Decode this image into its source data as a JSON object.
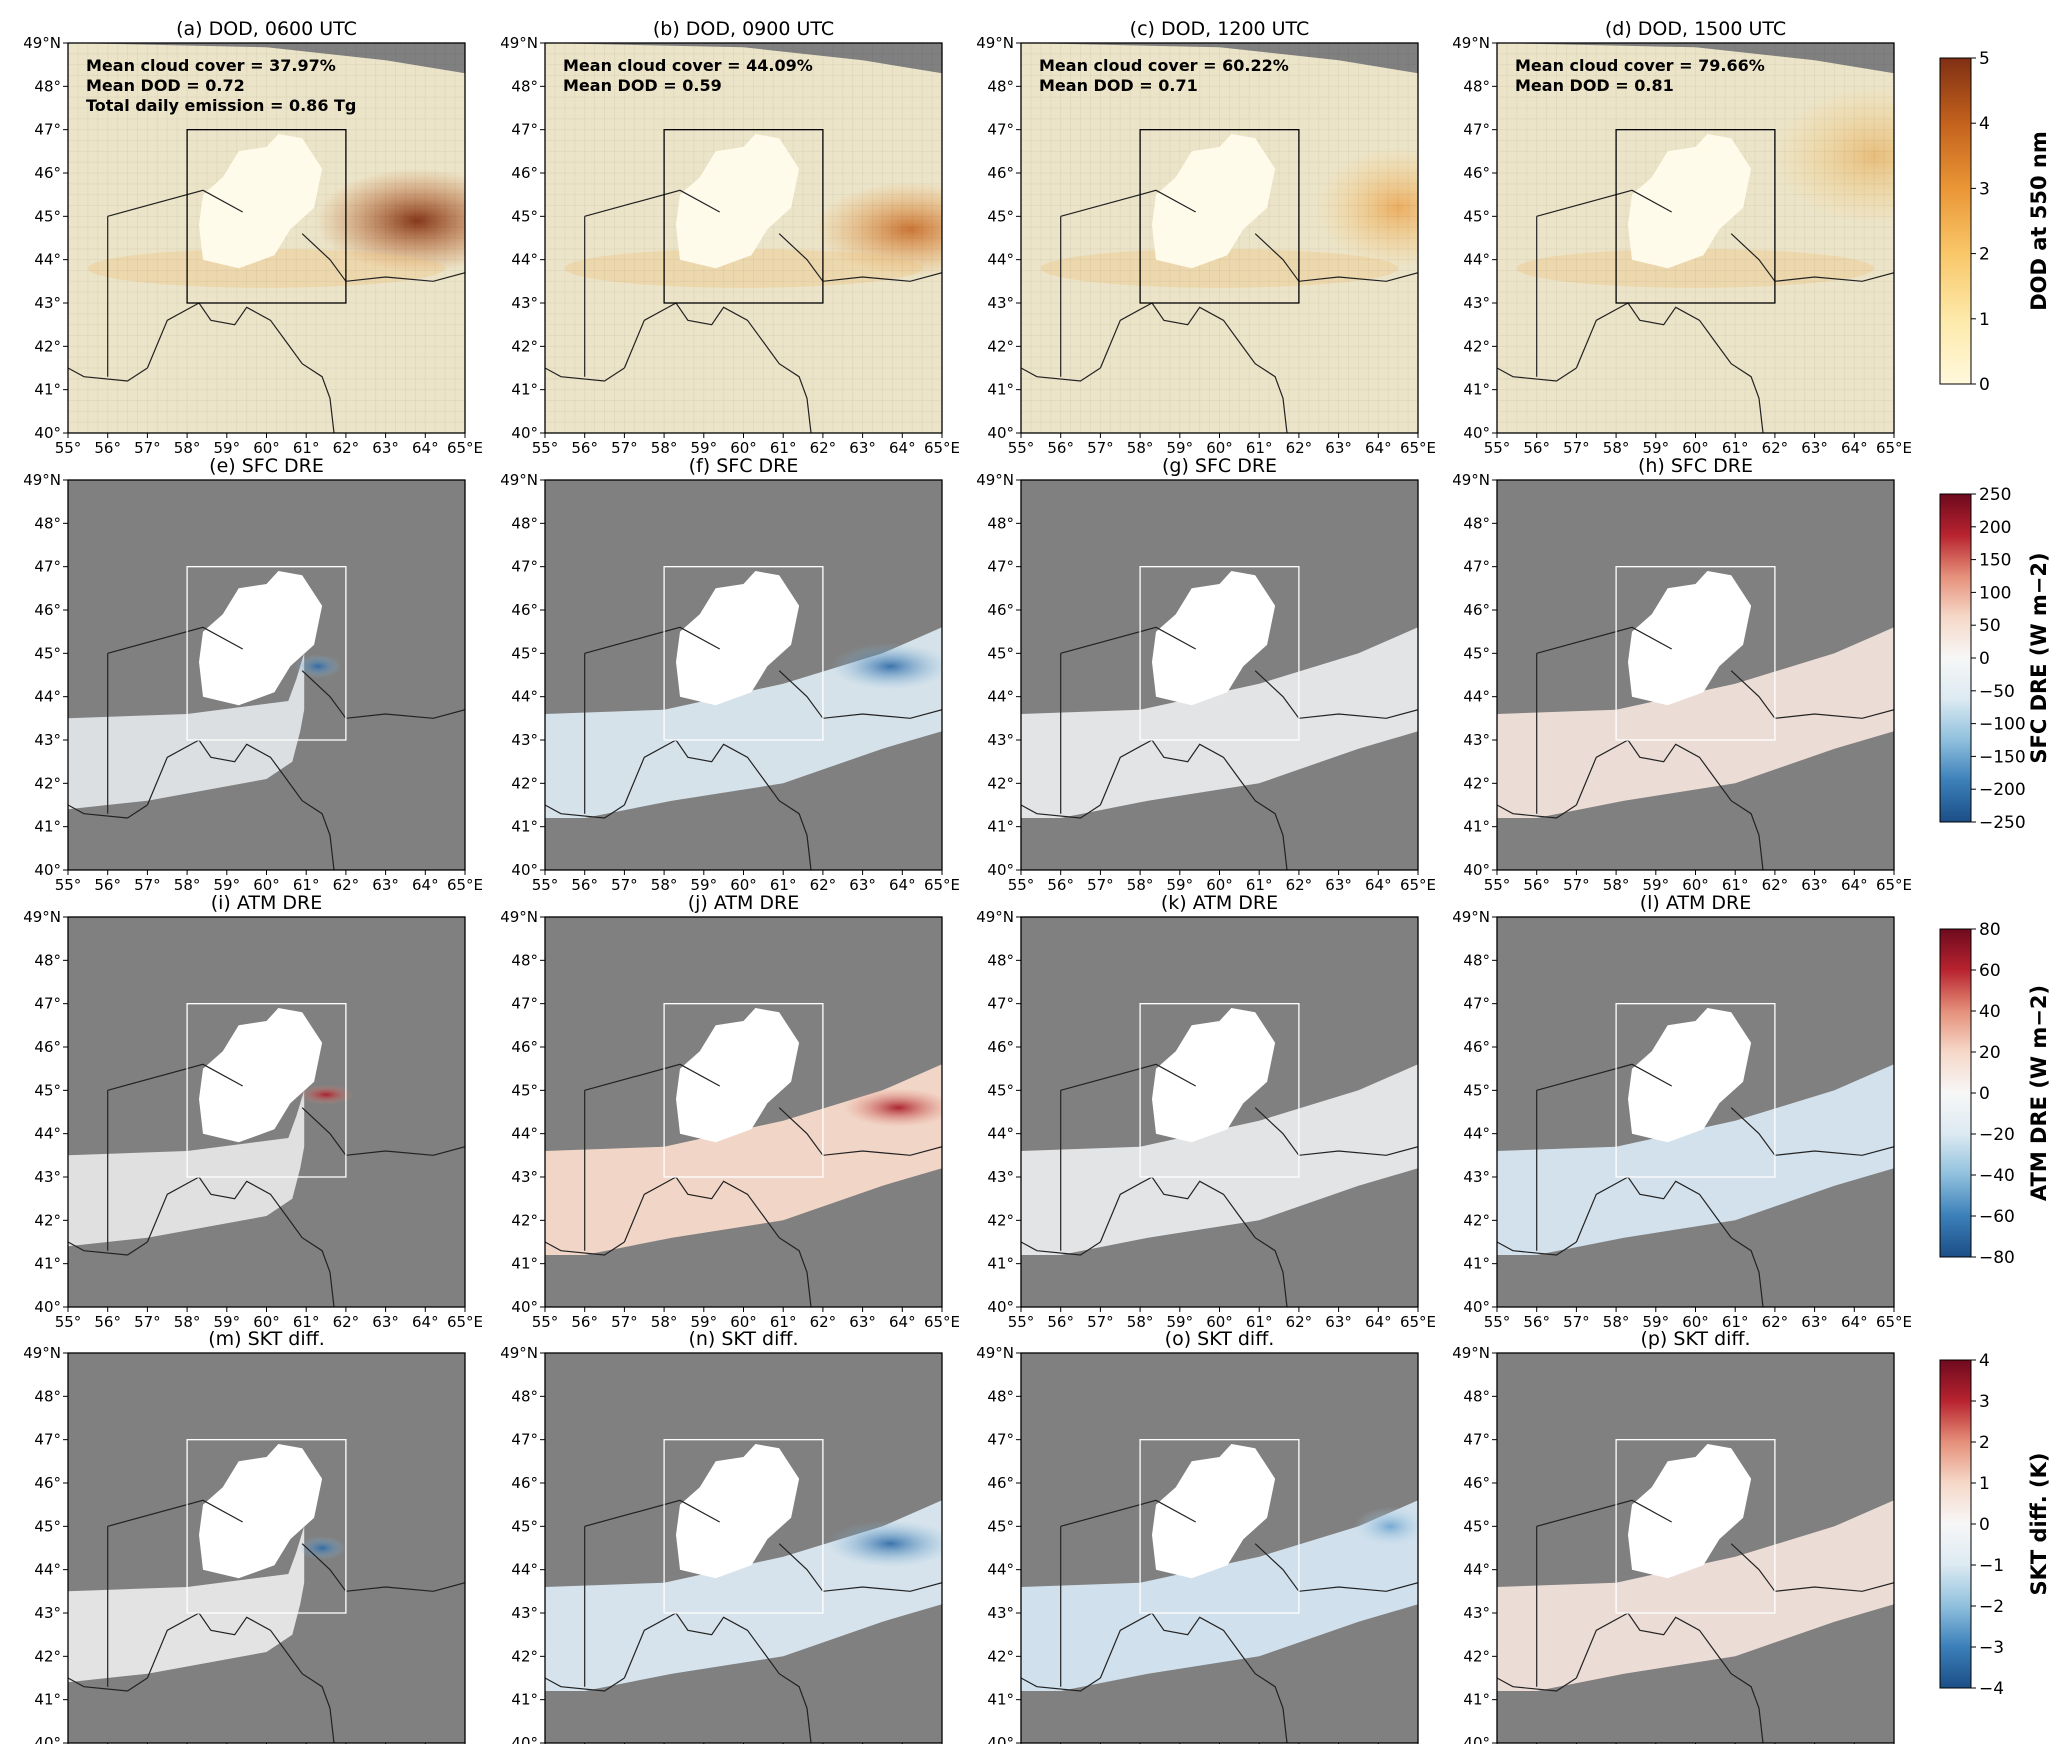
{
  "figure": {
    "lat_ticks": [
      "40°",
      "41°",
      "42°",
      "43°",
      "44°",
      "45°",
      "46°",
      "47°",
      "48°",
      "49°N"
    ],
    "lon_ticks": [
      "55°",
      "56°",
      "57°",
      "58°",
      "59°",
      "60°",
      "61°",
      "62°",
      "63°",
      "64°",
      "65°E"
    ]
  },
  "rows": [
    {
      "variable": "DOD",
      "panels": [
        {
          "title": "(a) DOD, 0600 UTC",
          "annotations": [
            "Mean cloud cover = 37.97%",
            "Mean DOD = 0.72",
            "Total daily emission = 0.86 Tg"
          ]
        },
        {
          "title": "(b) DOD, 0900 UTC",
          "annotations": [
            "Mean cloud cover = 44.09%",
            "Mean DOD = 0.59"
          ]
        },
        {
          "title": "(c) DOD, 1200 UTC",
          "annotations": [
            "Mean cloud cover = 60.22%",
            "Mean DOD = 0.71"
          ]
        },
        {
          "title": "(d) DOD, 1500 UTC",
          "annotations": [
            "Mean cloud cover = 79.66%",
            "Mean DOD = 0.81"
          ]
        }
      ],
      "colorbar": {
        "label": "DOD at 550 nm",
        "ticks": [
          "0",
          "1",
          "2",
          "3",
          "4",
          "5"
        ],
        "colors": [
          "#fff8dc",
          "#fde9a9",
          "#f9c769",
          "#ea9636",
          "#c4621d",
          "#7f2f13"
        ]
      }
    },
    {
      "variable": "SFC DRE",
      "panels": [
        {
          "title": "(e) SFC DRE",
          "annotations": []
        },
        {
          "title": "(f) SFC DRE",
          "annotations": []
        },
        {
          "title": "(g) SFC DRE",
          "annotations": []
        },
        {
          "title": "(h) SFC DRE",
          "annotations": []
        }
      ],
      "colorbar": {
        "label": "SFC DRE (W m−2)",
        "ticks": [
          "−250",
          "−200",
          "−150",
          "−100",
          "−50",
          "0",
          "50",
          "100",
          "150",
          "200",
          "250"
        ],
        "colors": [
          "#1c4e86",
          "#3b7fb9",
          "#8fc0dd",
          "#dceaf2",
          "#f7f7f7",
          "#f6d8c8",
          "#e5907a",
          "#b8232f",
          "#6e0a1e"
        ]
      }
    },
    {
      "variable": "ATM DRE",
      "panels": [
        {
          "title": "(i) ATM DRE",
          "annotations": []
        },
        {
          "title": "(j) ATM DRE",
          "annotations": []
        },
        {
          "title": "(k) ATM DRE",
          "annotations": []
        },
        {
          "title": "(l) ATM DRE",
          "annotations": []
        }
      ],
      "colorbar": {
        "label": "ATM DRE (W m−2)",
        "ticks": [
          "−80",
          "−60",
          "−40",
          "−20",
          "0",
          "20",
          "40",
          "60",
          "80"
        ],
        "colors": [
          "#1c4e86",
          "#3b7fb9",
          "#8fc0dd",
          "#dceaf2",
          "#f7f7f7",
          "#f6d8c8",
          "#e5907a",
          "#b8232f",
          "#6e0a1e"
        ]
      }
    },
    {
      "variable": "SKT diff.",
      "panels": [
        {
          "title": "(m) SKT diff.",
          "annotations": []
        },
        {
          "title": "(n) SKT diff.",
          "annotations": []
        },
        {
          "title": "(o) SKT diff.",
          "annotations": []
        },
        {
          "title": "(p) SKT diff.",
          "annotations": []
        }
      ],
      "colorbar": {
        "label": "SKT diff. (K)",
        "ticks": [
          "−4",
          "−3",
          "−2",
          "−1",
          "0",
          "1",
          "2",
          "3",
          "4"
        ],
        "colors": [
          "#1c4e86",
          "#3b7fb9",
          "#8fc0dd",
          "#dceaf2",
          "#f7f7f7",
          "#f6d8c8",
          "#e5907a",
          "#b8232f",
          "#6e0a1e"
        ]
      }
    }
  ],
  "chart_data": {
    "type": "heatmap",
    "layout": "4x4 map grid",
    "x": {
      "label": "",
      "range": [
        55,
        65
      ],
      "ticks": [
        "55°",
        "56°",
        "57°",
        "58°",
        "59°",
        "60°",
        "61°",
        "62°",
        "63°",
        "64°",
        "65°E"
      ]
    },
    "y": {
      "label": "",
      "range": [
        40,
        49
      ],
      "ticks": [
        "40°",
        "41°",
        "42°",
        "43°",
        "44°",
        "45°",
        "46°",
        "47°",
        "48°",
        "49°N"
      ]
    },
    "highlight_box": {
      "lon": [
        58,
        62
      ],
      "lat": [
        43,
        47
      ]
    },
    "colorbars": [
      {
        "label": "DOD at 550 nm",
        "range": [
          0,
          5
        ]
      },
      {
        "label": "SFC DRE (W m−2)",
        "range": [
          -250,
          250
        ]
      },
      {
        "label": "ATM DRE (W m−2)",
        "range": [
          -80,
          80
        ]
      },
      {
        "label": "SKT diff. (K)",
        "range": [
          -4,
          4
        ]
      }
    ],
    "panel_stats": [
      {
        "panel": "a",
        "mean_cloud_cover": 37.97,
        "mean_dod": 0.72,
        "total_daily_emission_tg": 0.86
      },
      {
        "panel": "b",
        "mean_cloud_cover": 44.09,
        "mean_dod": 0.59
      },
      {
        "panel": "c",
        "mean_cloud_cover": 60.22,
        "mean_dod": 0.71
      },
      {
        "panel": "d",
        "mean_cloud_cover": 79.66,
        "mean_dod": 0.81
      }
    ]
  }
}
